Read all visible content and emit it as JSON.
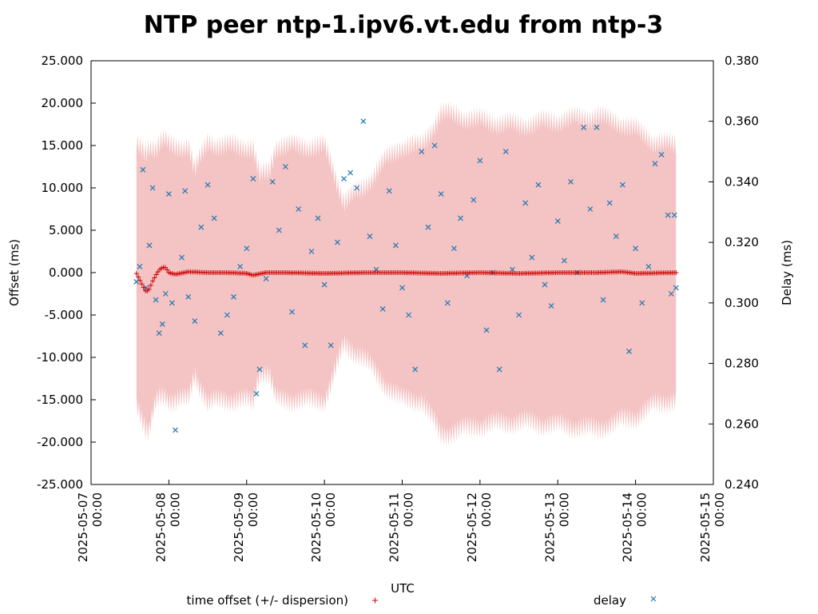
{
  "chart_data": {
    "type": "scatter",
    "title": "NTP peer ntp-1.ipv6.vt.edu from ntp-3",
    "xlabel": "UTC",
    "ylabel_left": "Offset (ms)",
    "ylabel_right": "Delay (ms)",
    "x_range": [
      "2025-05-07 00:00",
      "2025-05-15 00:00"
    ],
    "x_ticks": [
      [
        "2025-05-07",
        "00:00"
      ],
      [
        "2025-05-08",
        "00:00"
      ],
      [
        "2025-05-09",
        "00:00"
      ],
      [
        "2025-05-10",
        "00:00"
      ],
      [
        "2025-05-11",
        "00:00"
      ],
      [
        "2025-05-12",
        "00:00"
      ],
      [
        "2025-05-13",
        "00:00"
      ],
      [
        "2025-05-14",
        "00:00"
      ],
      [
        "2025-05-15",
        "00:00"
      ]
    ],
    "y_left_range": [
      -25.0,
      25.0
    ],
    "y_left_ticks": [
      "25.000",
      "20.000",
      "15.000",
      "10.000",
      "5.000",
      "0.000",
      "-5.000",
      "-10.000",
      "-15.000",
      "-20.000",
      "-25.000"
    ],
    "y_right_range": [
      0.24,
      0.38
    ],
    "y_right_ticks": [
      "0.380",
      "0.360",
      "0.340",
      "0.320",
      "0.300",
      "0.280",
      "0.260",
      "0.240"
    ],
    "grid": false,
    "legend_position": "bottom",
    "series": [
      {
        "name": "time offset (+/- dispersion)",
        "marker": "+",
        "color": "#cc0000",
        "band_color": "#f4c3c3",
        "offset_points": [
          [
            "2025-05-07 14:00",
            -0.1
          ],
          [
            "2025-05-07 16:00",
            -1.6
          ],
          [
            "2025-05-07 17:00",
            -2.3
          ],
          [
            "2025-05-07 18:00",
            -1.9
          ],
          [
            "2025-05-07 19:00",
            -1.0
          ],
          [
            "2025-05-07 20:00",
            -0.3
          ],
          [
            "2025-05-07 21:00",
            0.3
          ],
          [
            "2025-05-07 22:00",
            0.6
          ],
          [
            "2025-05-07 23:00",
            0.6
          ],
          [
            "2025-05-08 00:00",
            0.0
          ],
          [
            "2025-05-08 02:00",
            -0.2
          ],
          [
            "2025-05-08 06:00",
            0.1
          ],
          [
            "2025-05-08 12:00",
            0.0
          ],
          [
            "2025-05-08 18:00",
            0.0
          ],
          [
            "2025-05-09 00:00",
            -0.1
          ],
          [
            "2025-05-09 02:00",
            -0.3
          ],
          [
            "2025-05-09 06:00",
            0.0
          ],
          [
            "2025-05-09 12:00",
            0.0
          ],
          [
            "2025-05-10 00:00",
            -0.1
          ],
          [
            "2025-05-10 12:00",
            0.0
          ],
          [
            "2025-05-11 00:00",
            0.0
          ],
          [
            "2025-05-11 12:00",
            -0.1
          ],
          [
            "2025-05-12 00:00",
            0.0
          ],
          [
            "2025-05-12 12:00",
            -0.1
          ],
          [
            "2025-05-13 00:00",
            0.0
          ],
          [
            "2025-05-13 12:00",
            0.0
          ],
          [
            "2025-05-13 20:00",
            0.1
          ],
          [
            "2025-05-14 00:00",
            -0.1
          ],
          [
            "2025-05-14 12:00",
            0.0
          ],
          [
            "2025-05-14 12:30",
            0.0
          ]
        ],
        "dispersion_envelope": [
          [
            "2025-05-07 14:00",
            15.0
          ],
          [
            "2025-05-07 18:00",
            17.0
          ],
          [
            "2025-05-07 20:00",
            15.0
          ],
          [
            "2025-05-08 06:00",
            15.0
          ],
          [
            "2025-05-08 08:00",
            12.0
          ],
          [
            "2025-05-08 12:00",
            15.5
          ],
          [
            "2025-05-08 16:00",
            15.0
          ],
          [
            "2025-05-09 02:00",
            15.0
          ],
          [
            "2025-05-09 04:00",
            11.5
          ],
          [
            "2025-05-09 07:00",
            12.0
          ],
          [
            "2025-05-09 09:00",
            15.0
          ],
          [
            "2025-05-09 18:00",
            15.0
          ],
          [
            "2025-05-10 00:00",
            15.0
          ],
          [
            "2025-05-10 02:00",
            13.0
          ],
          [
            "2025-05-10 06:00",
            8.5
          ],
          [
            "2025-05-10 12:00",
            10.0
          ],
          [
            "2025-05-10 18:00",
            13.0
          ],
          [
            "2025-05-11 00:00",
            15.0
          ],
          [
            "2025-05-11 06:00",
            15.0
          ],
          [
            "2025-05-11 12:00",
            19.0
          ],
          [
            "2025-05-12 00:00",
            18.0
          ],
          [
            "2025-05-12 12:00",
            17.5
          ],
          [
            "2025-05-13 00:00",
            18.0
          ],
          [
            "2025-05-13 12:00",
            18.5
          ],
          [
            "2025-05-14 00:00",
            17.0
          ],
          [
            "2025-05-14 06:00",
            15.5
          ],
          [
            "2025-05-14 12:30",
            15.0
          ]
        ]
      },
      {
        "name": "delay",
        "marker": "x",
        "color": "#1f77b4",
        "axis": "right",
        "points": [
          [
            "2025-05-07 14:00",
            0.307
          ],
          [
            "2025-05-07 15:00",
            0.312
          ],
          [
            "2025-05-07 16:00",
            0.344
          ],
          [
            "2025-05-07 17:00",
            0.305
          ],
          [
            "2025-05-07 18:00",
            0.319
          ],
          [
            "2025-05-07 19:00",
            0.338
          ],
          [
            "2025-05-07 20:00",
            0.301
          ],
          [
            "2025-05-07 21:00",
            0.29
          ],
          [
            "2025-05-07 22:00",
            0.293
          ],
          [
            "2025-05-07 23:00",
            0.303
          ],
          [
            "2025-05-08 00:00",
            0.336
          ],
          [
            "2025-05-08 01:00",
            0.3
          ],
          [
            "2025-05-08 02:00",
            0.258
          ],
          [
            "2025-05-08 04:00",
            0.315
          ],
          [
            "2025-05-08 05:00",
            0.337
          ],
          [
            "2025-05-08 06:00",
            0.302
          ],
          [
            "2025-05-08 08:00",
            0.294
          ],
          [
            "2025-05-08 10:00",
            0.325
          ],
          [
            "2025-05-08 12:00",
            0.339
          ],
          [
            "2025-05-08 14:00",
            0.328
          ],
          [
            "2025-05-08 16:00",
            0.29
          ],
          [
            "2025-05-08 18:00",
            0.296
          ],
          [
            "2025-05-08 20:00",
            0.302
          ],
          [
            "2025-05-08 22:00",
            0.312
          ],
          [
            "2025-05-09 00:00",
            0.318
          ],
          [
            "2025-05-09 02:00",
            0.341
          ],
          [
            "2025-05-09 03:00",
            0.27
          ],
          [
            "2025-05-09 04:00",
            0.278
          ],
          [
            "2025-05-09 06:00",
            0.308
          ],
          [
            "2025-05-09 08:00",
            0.34
          ],
          [
            "2025-05-09 10:00",
            0.324
          ],
          [
            "2025-05-09 12:00",
            0.345
          ],
          [
            "2025-05-09 14:00",
            0.297
          ],
          [
            "2025-05-09 16:00",
            0.331
          ],
          [
            "2025-05-09 18:00",
            0.286
          ],
          [
            "2025-05-09 20:00",
            0.317
          ],
          [
            "2025-05-09 22:00",
            0.328
          ],
          [
            "2025-05-10 00:00",
            0.306
          ],
          [
            "2025-05-10 02:00",
            0.286
          ],
          [
            "2025-05-10 04:00",
            0.32
          ],
          [
            "2025-05-10 06:00",
            0.341
          ],
          [
            "2025-05-10 08:00",
            0.343
          ],
          [
            "2025-05-10 10:00",
            0.338
          ],
          [
            "2025-05-10 12:00",
            0.36
          ],
          [
            "2025-05-10 14:00",
            0.322
          ],
          [
            "2025-05-10 16:00",
            0.311
          ],
          [
            "2025-05-10 18:00",
            0.298
          ],
          [
            "2025-05-10 20:00",
            0.337
          ],
          [
            "2025-05-10 22:00",
            0.319
          ],
          [
            "2025-05-11 00:00",
            0.305
          ],
          [
            "2025-05-11 02:00",
            0.296
          ],
          [
            "2025-05-11 04:00",
            0.278
          ],
          [
            "2025-05-11 06:00",
            0.35
          ],
          [
            "2025-05-11 08:00",
            0.325
          ],
          [
            "2025-05-11 10:00",
            0.352
          ],
          [
            "2025-05-11 12:00",
            0.336
          ],
          [
            "2025-05-11 14:00",
            0.3
          ],
          [
            "2025-05-11 16:00",
            0.318
          ],
          [
            "2025-05-11 18:00",
            0.328
          ],
          [
            "2025-05-11 20:00",
            0.309
          ],
          [
            "2025-05-11 22:00",
            0.334
          ],
          [
            "2025-05-12 00:00",
            0.347
          ],
          [
            "2025-05-12 02:00",
            0.291
          ],
          [
            "2025-05-12 04:00",
            0.31
          ],
          [
            "2025-05-12 06:00",
            0.278
          ],
          [
            "2025-05-12 08:00",
            0.35
          ],
          [
            "2025-05-12 10:00",
            0.311
          ],
          [
            "2025-05-12 12:00",
            0.296
          ],
          [
            "2025-05-12 14:00",
            0.333
          ],
          [
            "2025-05-12 16:00",
            0.315
          ],
          [
            "2025-05-12 18:00",
            0.339
          ],
          [
            "2025-05-12 20:00",
            0.306
          ],
          [
            "2025-05-12 22:00",
            0.299
          ],
          [
            "2025-05-13 00:00",
            0.327
          ],
          [
            "2025-05-13 02:00",
            0.314
          ],
          [
            "2025-05-13 04:00",
            0.34
          ],
          [
            "2025-05-13 06:00",
            0.31
          ],
          [
            "2025-05-13 08:00",
            0.358
          ],
          [
            "2025-05-13 10:00",
            0.331
          ],
          [
            "2025-05-13 12:00",
            0.358
          ],
          [
            "2025-05-13 14:00",
            0.301
          ],
          [
            "2025-05-13 16:00",
            0.333
          ],
          [
            "2025-05-13 18:00",
            0.322
          ],
          [
            "2025-05-13 20:00",
            0.339
          ],
          [
            "2025-05-13 22:00",
            0.284
          ],
          [
            "2025-05-14 00:00",
            0.318
          ],
          [
            "2025-05-14 02:00",
            0.3
          ],
          [
            "2025-05-14 04:00",
            0.312
          ],
          [
            "2025-05-14 06:00",
            0.346
          ],
          [
            "2025-05-14 08:00",
            0.349
          ],
          [
            "2025-05-14 10:00",
            0.329
          ],
          [
            "2025-05-14 11:00",
            0.303
          ],
          [
            "2025-05-14 12:00",
            0.329
          ],
          [
            "2025-05-14 12:30",
            0.305
          ]
        ]
      }
    ]
  }
}
